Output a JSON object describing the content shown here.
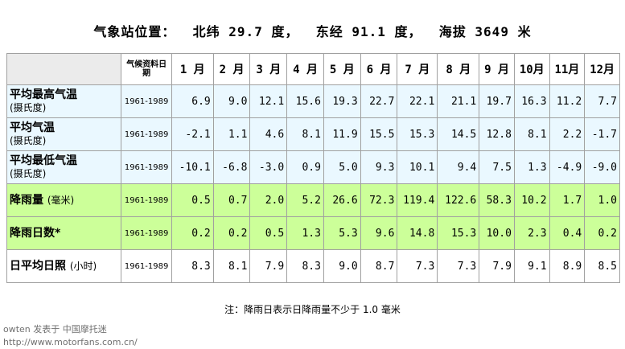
{
  "title": "气象站位置：  北纬 29.7 度，  东经 91.1 度，  海拔 3649 米",
  "header": {
    "period_label": "气候资料日期",
    "months": [
      "1 月",
      "2 月",
      "3 月",
      "4 月",
      "5 月",
      "6 月",
      "7 月",
      "8 月",
      "9 月",
      "10月",
      "11月",
      "12月"
    ]
  },
  "rows": [
    {
      "label": "平均最高气温",
      "sub": "(摄氏度)",
      "period": "1961-1989",
      "values": [
        "6.9",
        "9.0",
        "12.1",
        "15.6",
        "19.3",
        "22.7",
        "22.1",
        "21.1",
        "19.7",
        "16.3",
        "11.2",
        "7.7"
      ]
    },
    {
      "label": "平均气温",
      "sub": "(摄氏度)",
      "period": "1961-1989",
      "values": [
        "-2.1",
        "1.1",
        "4.6",
        "8.1",
        "11.9",
        "15.5",
        "15.3",
        "14.5",
        "12.8",
        "8.1",
        "2.2",
        "-1.7"
      ]
    },
    {
      "label": "平均最低气温",
      "sub": "(摄氏度)",
      "period": "1961-1989",
      "values": [
        "-10.1",
        "-6.8",
        "-3.0",
        "0.9",
        "5.0",
        "9.3",
        "10.1",
        "9.4",
        "7.5",
        "1.3",
        "-4.9",
        "-9.0"
      ]
    },
    {
      "label": "降雨量",
      "unit": "(毫米)",
      "period": "1961-1989",
      "values": [
        "0.5",
        "0.7",
        "2.0",
        "5.2",
        "26.6",
        "72.3",
        "119.4",
        "122.6",
        "58.3",
        "10.2",
        "1.7",
        "1.0"
      ]
    },
    {
      "label": "降雨日数*",
      "period": "1961-1989",
      "values": [
        "0.2",
        "0.2",
        "0.5",
        "1.3",
        "5.3",
        "9.6",
        "14.8",
        "15.3",
        "10.0",
        "2.3",
        "0.4",
        "0.2"
      ]
    },
    {
      "label": "日平均日照",
      "unit": "(小时)",
      "period": "1961-1989",
      "values": [
        "8.3",
        "8.1",
        "7.9",
        "8.3",
        "9.0",
        "8.7",
        "7.3",
        "7.3",
        "7.9",
        "9.1",
        "8.9",
        "8.5"
      ]
    }
  ],
  "note": "注：降雨日表示日降雨量不少于 1.0 毫米",
  "watermark": {
    "line1": "owten 发表于 中国摩托迷",
    "line2": "http://www.motorfans.com.cn/"
  }
}
